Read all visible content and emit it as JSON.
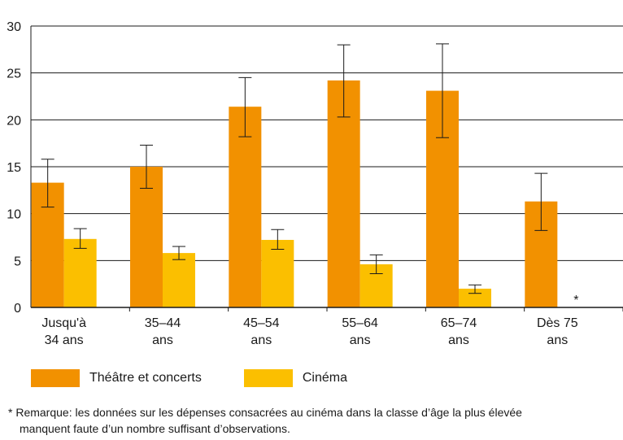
{
  "chart_data": {
    "type": "bar",
    "categories": [
      [
        "Jusqu'à",
        "34 ans"
      ],
      [
        "35–44",
        "ans"
      ],
      [
        "45–54",
        "ans"
      ],
      [
        "55–64",
        "ans"
      ],
      [
        "65–74",
        "ans"
      ],
      [
        "Dès 75",
        "ans"
      ]
    ],
    "ylim": [
      0,
      30
    ],
    "yticks": [
      0,
      5,
      10,
      15,
      20,
      25,
      30
    ],
    "grid": true,
    "series": [
      {
        "name": "Théâtre et concerts",
        "color": "#f29100",
        "values": [
          13.3,
          15.0,
          21.4,
          24.2,
          23.1,
          11.3
        ],
        "err_low": [
          10.7,
          12.7,
          18.2,
          20.3,
          18.1,
          8.2
        ],
        "err_high": [
          15.8,
          17.3,
          24.5,
          28.0,
          28.1,
          14.3
        ]
      },
      {
        "name": "Cinéma",
        "color": "#fbbf00",
        "values": [
          7.3,
          5.8,
          7.2,
          4.6,
          2.0,
          null
        ],
        "err_low": [
          6.3,
          5.1,
          6.2,
          3.6,
          1.5,
          null
        ],
        "err_high": [
          8.4,
          6.5,
          8.3,
          5.6,
          2.4,
          null
        ]
      }
    ],
    "missing_marker": "*",
    "legend_position": "bottom",
    "footnote": [
      "*  Remarque: les données sur les dépenses consacrées au cinéma dans la classe d’âge la plus élevée",
      "manquent faute d’un nombre suffisant d’observations."
    ]
  }
}
